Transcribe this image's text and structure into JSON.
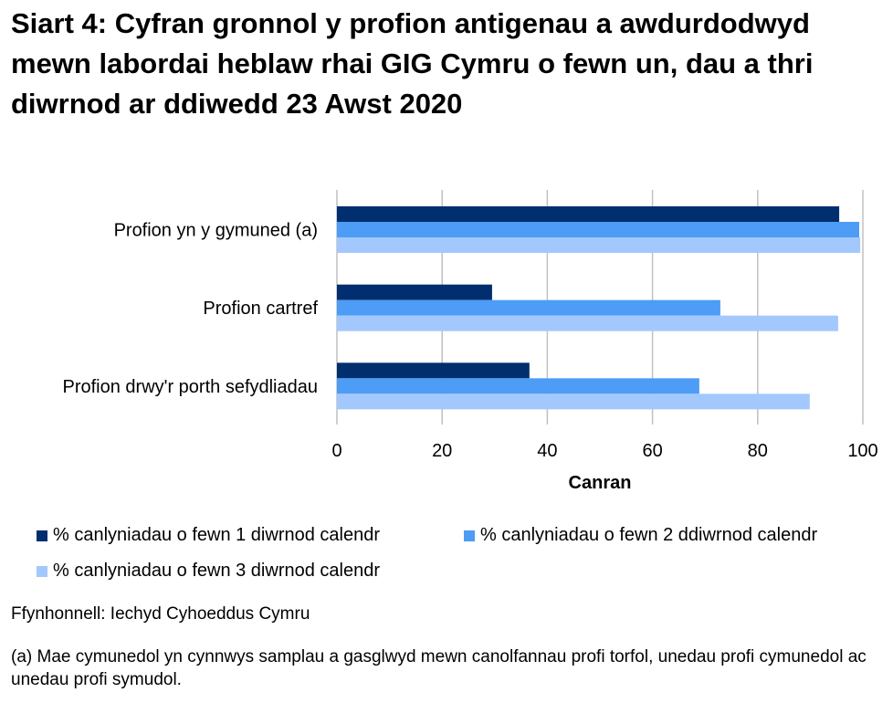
{
  "chart_data": {
    "type": "bar",
    "orientation": "horizontal",
    "title": "Siart 4: Cyfran gronnol y profion antigenau a awdurdodwyd mewn labordai heblaw rhai GIG Cymru o fewn un, dau a thri diwrnod ar ddiwedd 23 Awst 2020",
    "categories": [
      "Profion yn y gymuned (a)",
      "Profion cartref",
      "Profion drwy'r porth sefydliadau"
    ],
    "series": [
      {
        "name": "% canlyniadau o fewn 1 diwrnod calendr",
        "color": "#002e6e",
        "values": [
          95.5,
          29.5,
          36.6
        ]
      },
      {
        "name": "% canlyniadau o fewn 2 ddiwrnod calendr",
        "color": "#4d9cf6",
        "values": [
          99.3,
          72.9,
          68.9
        ]
      },
      {
        "name": "% canlyniadau o fewn 3 diwrnod calendr",
        "color": "#a3c8fd",
        "values": [
          99.5,
          95.3,
          89.9
        ]
      }
    ],
    "xlabel": "Canran",
    "xlim": [
      0,
      100
    ],
    "xticks": [
      "0",
      "20",
      "40",
      "60",
      "80",
      "100"
    ],
    "grid": true,
    "legend_position": "bottom"
  },
  "source": "Ffynhonnell: Iechyd Cyhoeddus Cymru",
  "footnote": "(a) Mae cymunedol yn cynnwys samplau a gasglwyd mewn canolfannau profi torfol, unedau profi cymunedol ac unedau profi symudol."
}
